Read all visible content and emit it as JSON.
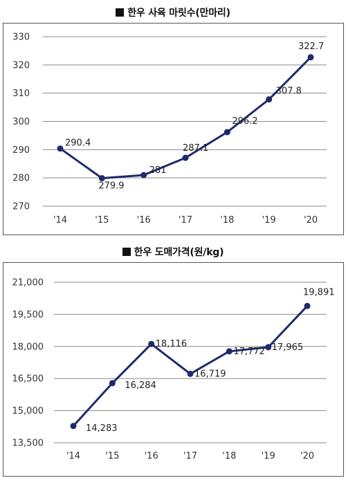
{
  "colors": {
    "line": "#1f2a6b",
    "grid": "#8a8a8a",
    "frame": "#555555"
  },
  "chart_data": [
    {
      "type": "line",
      "title": "한우 사육 마릿수(만마리)",
      "categories": [
        "'14",
        "'15",
        "'16",
        "'17",
        "'18",
        "'19",
        "'20"
      ],
      "values": [
        290.4,
        279.9,
        281,
        287.1,
        296.2,
        307.8,
        322.7
      ],
      "labels": [
        "290.4",
        "279.9",
        "281",
        "287.1",
        "296.2",
        "307.8",
        "322.7"
      ],
      "yticks": [
        270,
        280,
        290,
        300,
        310,
        320,
        330
      ],
      "ytick_labels": [
        "270",
        "280",
        "290",
        "300",
        "310",
        "320",
        "330"
      ],
      "ylim": [
        270,
        330
      ],
      "grid": true,
      "marker": "circle"
    },
    {
      "type": "line",
      "title": "한우 도매가격(원/kg)",
      "categories": [
        "'14",
        "'15",
        "'16",
        "'17",
        "'18",
        "'19",
        "'20"
      ],
      "values": [
        14283,
        16284,
        18116,
        16719,
        17772,
        17965,
        19891
      ],
      "labels": [
        "14,283",
        "16,284",
        "18,116",
        "16,719",
        "17,772",
        "17,965",
        "19,891"
      ],
      "yticks": [
        13500,
        15000,
        16500,
        18000,
        19500,
        21000
      ],
      "ytick_labels": [
        "13,500",
        "15,000",
        "16,500",
        "18,000",
        "19,500",
        "21,000"
      ],
      "ylim": [
        13500,
        21000
      ],
      "grid": true,
      "marker": "circle"
    }
  ]
}
